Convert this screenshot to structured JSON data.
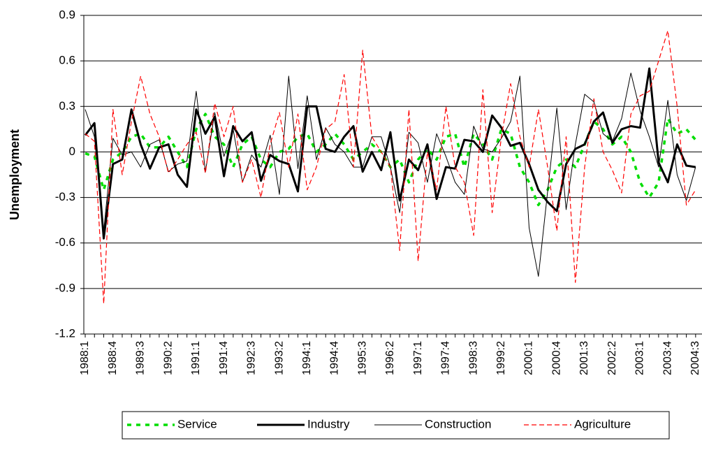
{
  "chart_data": {
    "type": "line",
    "y_label": "Unemployment",
    "categories": [
      "1988:1",
      null,
      null,
      "1988:4",
      null,
      null,
      "1989:3",
      null,
      null,
      "1990:2",
      null,
      null,
      "1991:1",
      null,
      null,
      "1991:4",
      null,
      null,
      "1992:3",
      null,
      null,
      "1993:2",
      null,
      null,
      "1994:1",
      null,
      null,
      "1994:4",
      null,
      null,
      "1995:3",
      null,
      null,
      "1996:2",
      null,
      null,
      "1997:1",
      null,
      null,
      "1997:4",
      null,
      null,
      "1998:3",
      null,
      null,
      "1999:2",
      null,
      null,
      "2000:1",
      null,
      null,
      "2000:4",
      null,
      null,
      "2001:3",
      null,
      null,
      "2002:2",
      null,
      null,
      "2003:1",
      null,
      null,
      "2003:4",
      null,
      null,
      "2004:3"
    ],
    "ylim": [
      -1.2,
      0.9
    ],
    "yticks": [
      -1.2,
      -0.9,
      -0.6,
      -0.3,
      0,
      0.3,
      0.6,
      0.9
    ],
    "grid": true,
    "legend": "bottom",
    "series": [
      {
        "name": "Service",
        "color": "#00dd00",
        "style": "dotted",
        "width": 3.5,
        "values": [
          -0.01,
          -0.03,
          -0.25,
          -0.05,
          0.0,
          0.1,
          0.12,
          0.03,
          0.03,
          0.1,
          0.0,
          -0.1,
          0.15,
          0.25,
          0.1,
          0.05,
          -0.1,
          0.05,
          0.1,
          -0.05,
          -0.1,
          0.0,
          0.02,
          0.1,
          0.12,
          0.0,
          0.05,
          0.12,
          0.05,
          -0.05,
          0.0,
          0.05,
          0.0,
          -0.1,
          -0.05,
          -0.2,
          -0.05,
          0.02,
          -0.05,
          0.1,
          0.12,
          -0.1,
          0.12,
          0.05,
          -0.05,
          0.15,
          0.12,
          -0.1,
          -0.2,
          -0.35,
          -0.25,
          -0.1,
          -0.05,
          -0.1,
          0.05,
          0.2,
          0.15,
          0.05,
          0.1,
          0.0,
          -0.2,
          -0.3,
          -0.2,
          0.22,
          0.12,
          0.15,
          0.08
        ]
      },
      {
        "name": "Industry",
        "color": "#000000",
        "style": "solid",
        "width": 3,
        "values": [
          0.11,
          0.19,
          -0.57,
          -0.08,
          -0.05,
          0.28,
          0.05,
          -0.11,
          0.03,
          0.05,
          -0.15,
          -0.23,
          0.28,
          0.12,
          0.23,
          -0.16,
          0.17,
          0.07,
          0.13,
          -0.19,
          -0.02,
          -0.06,
          -0.08,
          -0.26,
          0.3,
          0.3,
          0.02,
          0.0,
          0.1,
          0.17,
          -0.13,
          0.0,
          -0.12,
          0.13,
          -0.32,
          -0.05,
          -0.12,
          0.05,
          -0.31,
          -0.1,
          -0.11,
          0.08,
          0.07,
          0.0,
          0.24,
          0.16,
          0.04,
          0.06,
          -0.08,
          -0.25,
          -0.33,
          -0.39,
          -0.08,
          0.02,
          0.05,
          0.2,
          0.26,
          0.06,
          0.15,
          0.17,
          0.16,
          0.55,
          -0.07,
          -0.2,
          0.05,
          -0.09,
          -0.1
        ]
      },
      {
        "name": "Construction",
        "color": "#000000",
        "style": "solid",
        "width": 1,
        "values": [
          0.28,
          0.1,
          -0.52,
          0.09,
          -0.02,
          0.0,
          -0.1,
          0.05,
          0.08,
          -0.13,
          -0.08,
          -0.06,
          0.4,
          -0.13,
          0.26,
          -0.03,
          0.15,
          -0.2,
          -0.02,
          -0.1,
          0.11,
          -0.28,
          0.5,
          -0.11,
          0.37,
          -0.05,
          0.16,
          0.05,
          0.0,
          -0.1,
          -0.1,
          0.1,
          0.1,
          -0.1,
          -0.4,
          0.13,
          0.06,
          -0.2,
          0.12,
          -0.03,
          -0.2,
          -0.28,
          0.17,
          0.02,
          0.0,
          0.09,
          0.2,
          0.5,
          -0.5,
          -0.82,
          -0.26,
          0.29,
          -0.38,
          0.05,
          0.38,
          0.33,
          0.12,
          0.07,
          0.22,
          0.52,
          0.27,
          0.1,
          -0.1,
          0.34,
          -0.15,
          -0.32,
          -0.1
        ]
      },
      {
        "name": "Agriculture",
        "color": "#ff0000",
        "style": "dashed",
        "width": 1.2,
        "values": [
          0.12,
          0.07,
          -1.0,
          0.28,
          -0.15,
          0.2,
          0.5,
          0.25,
          0.1,
          -0.14,
          -0.05,
          0.05,
          0.13,
          -0.14,
          0.32,
          0.1,
          0.3,
          -0.2,
          -0.05,
          -0.3,
          0.05,
          0.26,
          -0.1,
          0.25,
          -0.25,
          -0.1,
          0.15,
          0.2,
          0.51,
          -0.1,
          0.67,
          0.1,
          0.0,
          -0.1,
          -0.65,
          0.28,
          -0.72,
          0.0,
          -0.25,
          0.3,
          -0.1,
          -0.2,
          -0.55,
          0.41,
          -0.4,
          0.1,
          0.45,
          0.1,
          -0.1,
          0.28,
          -0.1,
          -0.52,
          0.1,
          -0.86,
          -0.1,
          0.35,
          0.0,
          -0.12,
          -0.27,
          0.25,
          0.37,
          0.4,
          0.6,
          0.8,
          0.3,
          -0.35,
          -0.25
        ]
      }
    ]
  }
}
